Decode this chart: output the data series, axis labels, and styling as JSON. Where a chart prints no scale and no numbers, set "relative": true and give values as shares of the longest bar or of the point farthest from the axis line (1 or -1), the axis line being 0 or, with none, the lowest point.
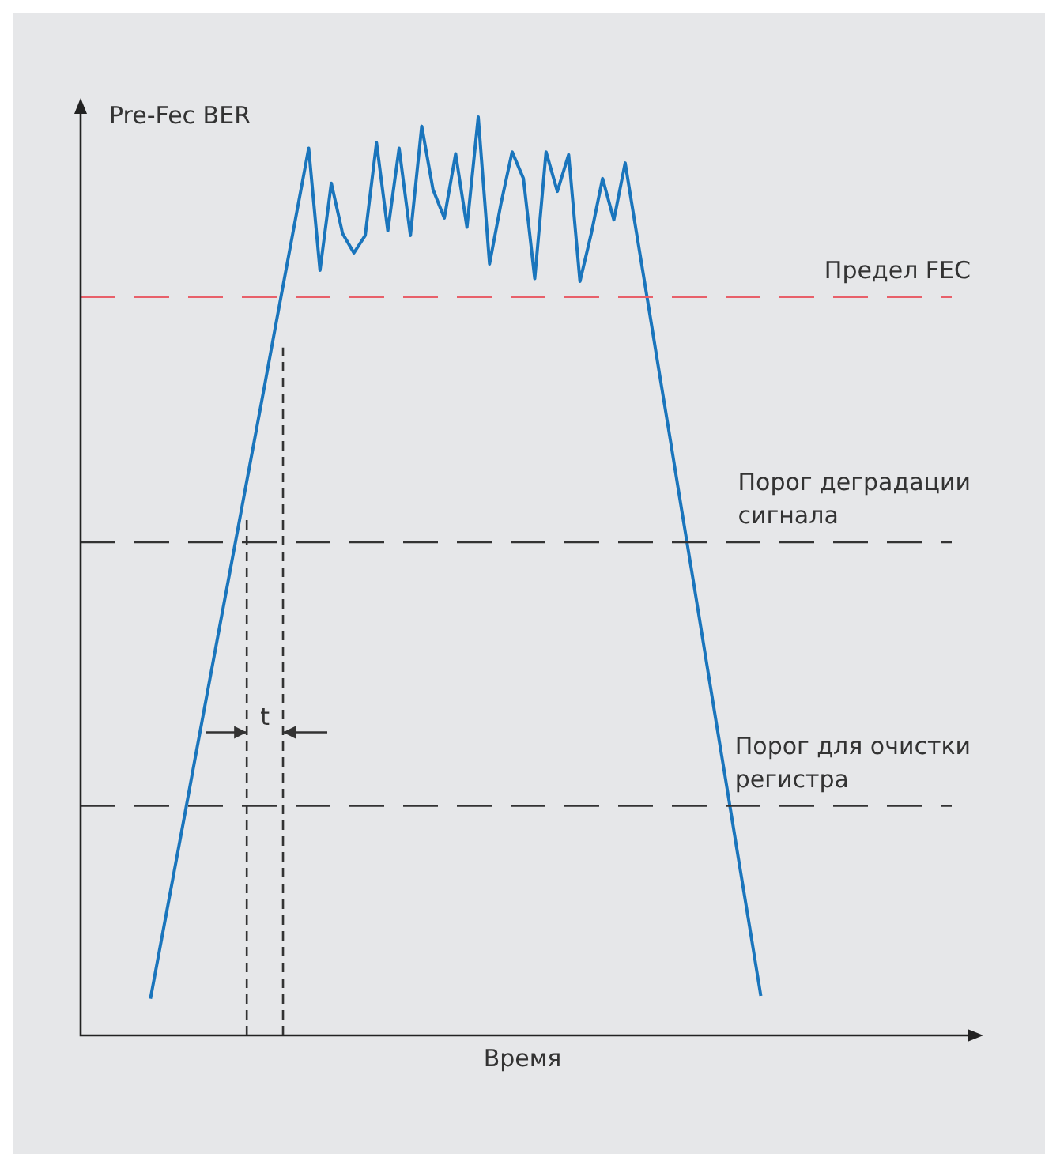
{
  "chart_data": {
    "type": "line",
    "relative": true,
    "xlabel": "Время",
    "ylabel": "Pre-Fec BER",
    "legend": false,
    "marker": "none",
    "categories": [
      null,
      null,
      null,
      null,
      null,
      null,
      null,
      null,
      null,
      null,
      null,
      null,
      null,
      null,
      null,
      null,
      null,
      null,
      null,
      null,
      null,
      null,
      null,
      null,
      null,
      null,
      null,
      null,
      null,
      null,
      null,
      null,
      null,
      null,
      null,
      null,
      null,
      null,
      null,
      null,
      null,
      null,
      null,
      null,
      null,
      null,
      null,
      null,
      null,
      null,
      null,
      null,
      null,
      null,
      null
    ],
    "series": [
      {
        "color": "#1a75bc",
        "values": [
          0.04,
          0.106,
          0.172,
          0.238,
          0.305,
          0.371,
          0.437,
          0.503,
          0.569,
          0.635,
          0.701,
          0.768,
          0.834,
          0.9,
          0.966,
          0.833,
          0.928,
          0.873,
          0.852,
          0.871,
          0.972,
          0.876,
          0.966,
          0.871,
          0.99,
          0.921,
          0.89,
          0.96,
          0.88,
          1,
          0.84,
          0.905,
          0.962,
          0.933,
          0.824,
          0.962,
          0.919,
          0.959,
          0.821,
          0.873,
          0.933,
          0.888,
          0.95,
          0.874,
          0.799,
          0.723,
          0.648,
          0.572,
          0.497,
          0.421,
          0.345,
          0.27,
          0.194,
          0.119,
          0.043
        ]
      }
    ],
    "ref_lines": [
      {
        "axis": "y",
        "value": 0.804,
        "label": "Предел FEC",
        "color": "#e8606a",
        "line_style": "dashed"
      },
      {
        "axis": "y",
        "value": 0.537,
        "label": "Порог деградации сигнала",
        "color": "#333333",
        "line_style": "dashed"
      },
      {
        "axis": "y",
        "value": 0.25,
        "label": "Порог для очистки регистра",
        "color": "#333333",
        "line_style": "dashed"
      }
    ],
    "annotations": [
      "t"
    ]
  }
}
